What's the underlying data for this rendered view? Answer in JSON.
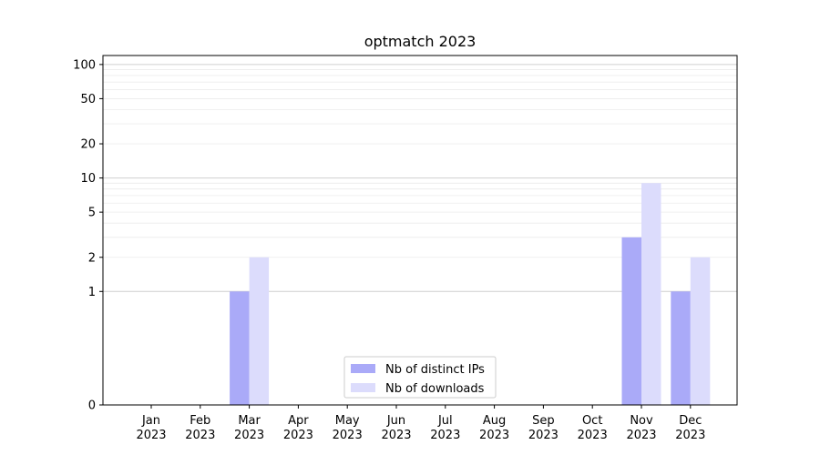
{
  "chart_data": {
    "type": "bar",
    "title": "optmatch 2023",
    "xlabel": "",
    "ylabel": "",
    "y_scale": "symlog",
    "ylim": [
      0,
      120
    ],
    "y_ticks": [
      0,
      1,
      2,
      5,
      10,
      20,
      50,
      100
    ],
    "categories": [
      [
        "Jan",
        "2023"
      ],
      [
        "Feb",
        "2023"
      ],
      [
        "Mar",
        "2023"
      ],
      [
        "Apr",
        "2023"
      ],
      [
        "May",
        "2023"
      ],
      [
        "Jun",
        "2023"
      ],
      [
        "Jul",
        "2023"
      ],
      [
        "Aug",
        "2023"
      ],
      [
        "Sep",
        "2023"
      ],
      [
        "Oct",
        "2023"
      ],
      [
        "Nov",
        "2023"
      ],
      [
        "Dec",
        "2023"
      ]
    ],
    "series": [
      {
        "name": "Nb of distinct IPs",
        "color": "#aaaaf8",
        "values": [
          0,
          0,
          1,
          0,
          0,
          0,
          0,
          0,
          0,
          0,
          3,
          1
        ]
      },
      {
        "name": "Nb of downloads",
        "color": "#dcdcfc",
        "values": [
          0,
          0,
          2,
          0,
          0,
          0,
          0,
          0,
          0,
          0,
          9,
          2
        ]
      }
    ],
    "grid": true,
    "legend_position": "lower-center"
  }
}
